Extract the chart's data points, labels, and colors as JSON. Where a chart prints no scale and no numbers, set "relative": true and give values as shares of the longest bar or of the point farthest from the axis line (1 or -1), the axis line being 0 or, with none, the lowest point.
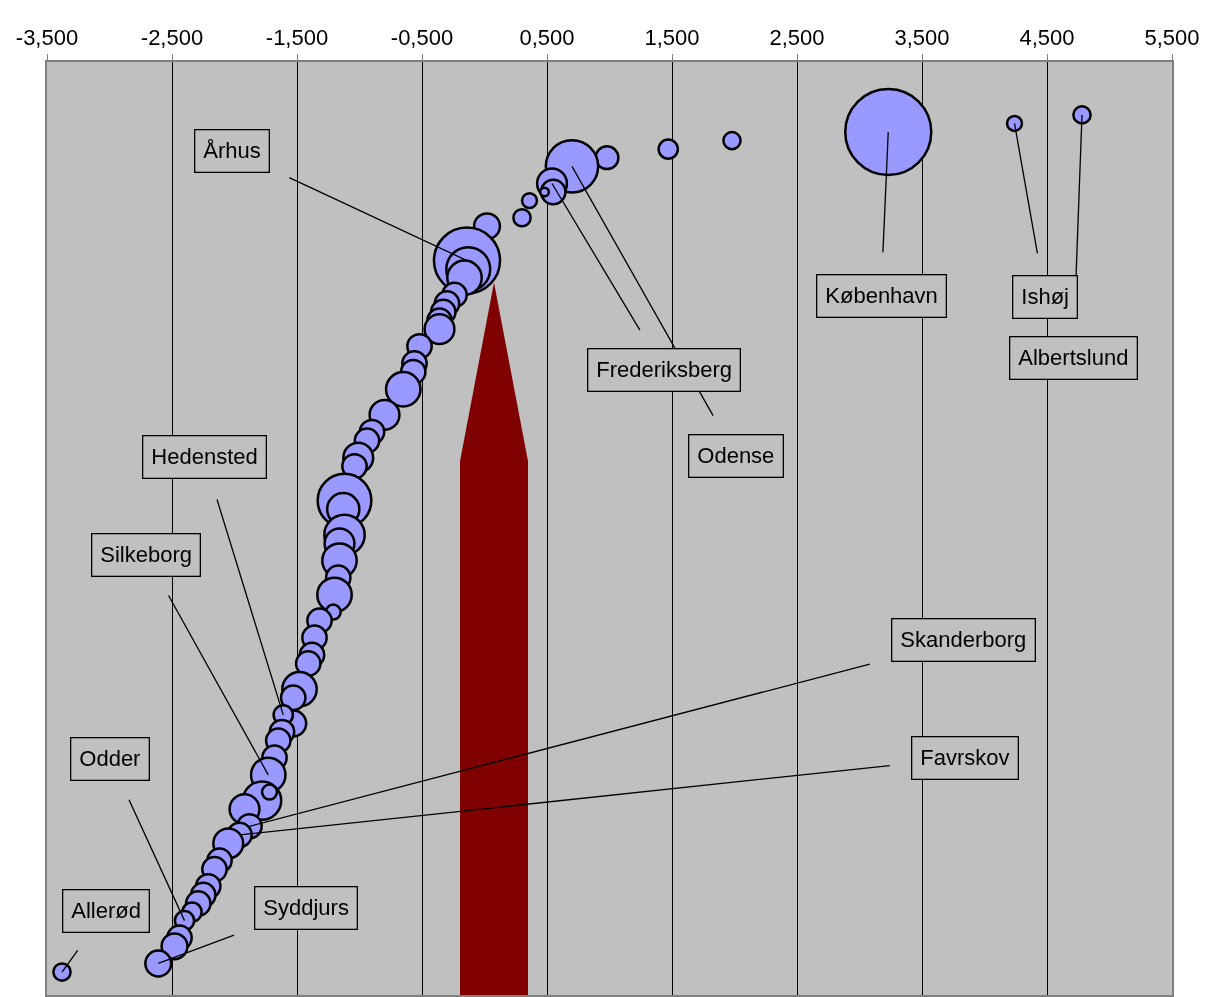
{
  "chart_data": {
    "type": "bubble",
    "relative": true,
    "grid": "x",
    "marker": "circle",
    "color": "#9999ff",
    "xlim": [
      -3.5,
      5.5
    ],
    "xticks": [
      {
        "value": -3.5,
        "label": "-3,500"
      },
      {
        "value": -2.5,
        "label": "-2,500"
      },
      {
        "value": -1.5,
        "label": "-1,500"
      },
      {
        "value": -0.5,
        "label": "-0,500"
      },
      {
        "value": 0.5,
        "label": "0,500"
      },
      {
        "value": 1.5,
        "label": "1,500"
      },
      {
        "value": 2.5,
        "label": "2,500"
      },
      {
        "value": 3.5,
        "label": "3,500"
      },
      {
        "value": 4.5,
        "label": "4,500"
      },
      {
        "value": 5.5,
        "label": "5,500"
      }
    ],
    "tick_labels": "x",
    "x": [
      4.78,
      4.24,
      3.23,
      1.98,
      1.47,
      0.98,
      0.7,
      0.54,
      0.55,
      0.48,
      0.36,
      0.3,
      0.02,
      -0.14,
      -0.13,
      -0.16,
      -0.24,
      -0.3,
      -0.33,
      -0.36,
      -0.36,
      -0.52,
      -0.56,
      -0.57,
      -0.65,
      -0.8,
      -0.9,
      -0.94,
      -1.01,
      -1.04,
      -1.12,
      -1.13,
      -1.12,
      -1.16,
      -1.16,
      -1.17,
      -1.2,
      -1.21,
      -1.32,
      -1.36,
      -1.38,
      -1.41,
      -1.48,
      -1.53,
      -1.53,
      -1.61,
      -1.62,
      -1.65,
      -1.68,
      -1.73,
      -1.78,
      -1.92,
      -1.88,
      -1.96,
      -2.05,
      -2.12,
      -2.16,
      -2.21,
      -2.25,
      -2.29,
      -2.34,
      -2.4,
      -2.44,
      -2.48,
      -2.61,
      -3.38,
      -1.72
    ],
    "values": [
      1.0,
      0.99,
      0.98,
      0.97,
      0.96,
      0.95,
      0.94,
      0.92,
      0.91,
      0.91,
      0.9,
      0.88,
      0.87,
      0.83,
      0.82,
      0.81,
      0.79,
      0.78,
      0.77,
      0.76,
      0.75,
      0.73,
      0.71,
      0.7,
      0.68,
      0.65,
      0.63,
      0.62,
      0.6,
      0.59,
      0.55,
      0.54,
      0.51,
      0.5,
      0.48,
      0.46,
      0.44,
      0.42,
      0.41,
      0.39,
      0.37,
      0.36,
      0.33,
      0.32,
      0.29,
      0.3,
      0.28,
      0.27,
      0.25,
      0.23,
      0.2,
      0.19,
      0.17,
      0.16,
      0.15,
      0.13,
      0.12,
      0.1,
      0.09,
      0.08,
      0.07,
      0.06,
      0.04,
      0.03,
      0.01,
      0.0,
      0.21
    ],
    "sizes": [
      0.04,
      0.03,
      1,
      0.04,
      0.05,
      0.07,
      0.37,
      0.12,
      0.08,
      0.01,
      0.03,
      0.04,
      0.09,
      0.59,
      0.26,
      0.16,
      0.08,
      0.08,
      0.08,
      0.08,
      0.12,
      0.08,
      0.08,
      0.08,
      0.16,
      0.12,
      0.08,
      0.08,
      0.12,
      0.08,
      0.39,
      0.14,
      0.22,
      0.12,
      0.16,
      0.08,
      0.16,
      0.03,
      0.08,
      0.08,
      0.08,
      0.08,
      0.16,
      0.08,
      0.09,
      0.05,
      0.08,
      0.08,
      0.08,
      0.16,
      0.2,
      0.12,
      0.08,
      0.08,
      0.12,
      0.08,
      0.08,
      0.08,
      0.08,
      0.08,
      0.05,
      0.05,
      0.08,
      0.09,
      0.09,
      0.04,
      0.03
    ],
    "annotations": [
      {
        "text": "Århus",
        "x": -0.14,
        "y": 0.83
      },
      {
        "text": "Hedensted",
        "x": -1.61,
        "y": 0.3
      },
      {
        "text": "Silkeborg",
        "x": -1.73,
        "y": 0.23
      },
      {
        "text": "Odder",
        "x": -2.4,
        "y": 0.06
      },
      {
        "text": "Allerød",
        "x": -3.38,
        "y": 0.0
      },
      {
        "text": "Syddjurs",
        "x": -2.61,
        "y": 0.01
      },
      {
        "text": "Skanderborg",
        "x": -1.88,
        "y": 0.17
      },
      {
        "text": "Favrskov",
        "x": -1.96,
        "y": 0.16
      },
      {
        "text": "København",
        "x": 3.23,
        "y": 0.98
      },
      {
        "text": "Ishøj",
        "x": 4.24,
        "y": 0.99
      },
      {
        "text": "Albertslund",
        "x": 4.78,
        "y": 1.0
      },
      {
        "text": "Frederiksberg",
        "x": 0.54,
        "y": 0.92
      },
      {
        "text": "Odense",
        "x": 0.7,
        "y": 0.94
      }
    ]
  }
}
